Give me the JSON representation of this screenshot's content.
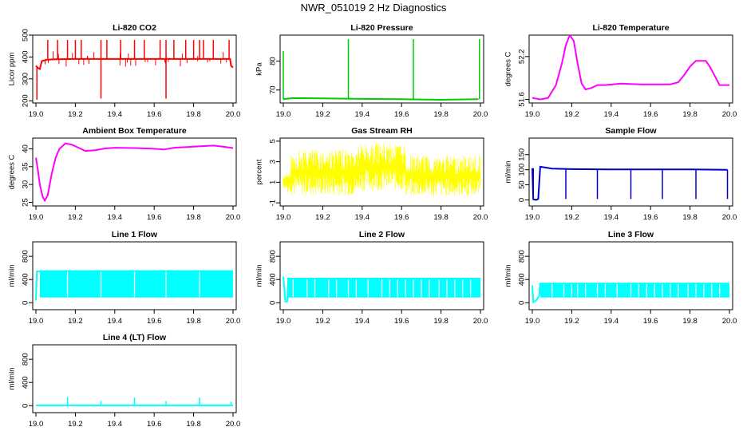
{
  "page_title": "NWR_051019  2 Hz Diagnostics",
  "chart_data": [
    {
      "id": "co2",
      "type": "line",
      "title": "Li-820 CO2",
      "ylabel": "Licor ppm",
      "color": "#ff0000",
      "xlim": [
        19.0,
        20.0
      ],
      "ylim": [
        190,
        500
      ],
      "xticks": [
        "19.0",
        "19.2",
        "19.4",
        "19.6",
        "19.8",
        "20.0"
      ],
      "yticks": [
        200,
        300,
        400,
        500
      ],
      "baseline": [
        [
          19.0,
          360
        ],
        [
          19.01,
          350
        ],
        [
          19.02,
          345
        ],
        [
          19.03,
          382
        ],
        [
          19.06,
          388
        ],
        [
          19.1,
          390
        ],
        [
          19.2,
          391
        ],
        [
          19.3,
          391
        ],
        [
          19.4,
          391
        ],
        [
          19.5,
          391
        ],
        [
          19.6,
          391
        ],
        [
          19.7,
          391
        ],
        [
          19.8,
          391
        ],
        [
          19.9,
          391
        ],
        [
          19.985,
          391
        ],
        [
          19.99,
          360
        ],
        [
          20.0,
          352
        ]
      ],
      "spikes": [
        [
          19.005,
          205
        ],
        [
          19.06,
          478
        ],
        [
          19.11,
          478
        ],
        [
          19.16,
          478
        ],
        [
          19.2,
          478
        ],
        [
          19.23,
          478
        ],
        [
          19.33,
          210
        ],
        [
          19.33,
          478
        ],
        [
          19.36,
          478
        ],
        [
          19.43,
          478
        ],
        [
          19.5,
          478
        ],
        [
          19.55,
          478
        ],
        [
          19.63,
          478
        ],
        [
          19.66,
          210
        ],
        [
          19.66,
          478
        ],
        [
          19.7,
          478
        ],
        [
          19.76,
          478
        ],
        [
          19.8,
          478
        ],
        [
          19.83,
          478
        ],
        [
          19.85,
          478
        ],
        [
          19.9,
          478
        ],
        [
          19.98,
          478
        ]
      ]
    },
    {
      "id": "pressure",
      "type": "line",
      "title": "Li-820 Pressure",
      "ylabel": "kPa",
      "color": "#00cc00",
      "xlim": [
        19.0,
        20.0
      ],
      "ylim": [
        65.5,
        89
      ],
      "xticks": [
        "19.0",
        "19.2",
        "19.4",
        "19.6",
        "19.8",
        "20.0"
      ],
      "yticks": [
        70,
        80
      ],
      "baseline": [
        [
          19.0,
          66.8
        ],
        [
          19.02,
          67.0
        ],
        [
          19.05,
          67.2
        ],
        [
          19.2,
          67.1
        ],
        [
          19.4,
          66.9
        ],
        [
          19.6,
          66.8
        ],
        [
          19.8,
          66.6
        ],
        [
          19.99,
          66.8
        ]
      ],
      "spikes": [
        [
          19.0,
          83.5
        ],
        [
          19.33,
          87.6
        ],
        [
          19.66,
          87.6
        ],
        [
          19.995,
          87.6
        ]
      ]
    },
    {
      "id": "temperature",
      "type": "line",
      "title": "Li-820 Temperature",
      "ylabel": "degrees C",
      "color": "#ff00ff",
      "xlim": [
        19.0,
        20.0
      ],
      "ylim": [
        51.55,
        52.5
      ],
      "xticks": [
        "19.0",
        "19.2",
        "19.4",
        "19.6",
        "19.8",
        "20.0"
      ],
      "yticks": [
        51.6,
        52.2
      ],
      "baseline": [
        [
          19.0,
          51.62
        ],
        [
          19.04,
          51.6
        ],
        [
          19.08,
          51.62
        ],
        [
          19.12,
          51.8
        ],
        [
          19.15,
          52.1
        ],
        [
          19.17,
          52.36
        ],
        [
          19.19,
          52.5
        ],
        [
          19.21,
          52.42
        ],
        [
          19.23,
          52.1
        ],
        [
          19.25,
          51.82
        ],
        [
          19.27,
          51.74
        ],
        [
          19.3,
          51.76
        ],
        [
          19.33,
          51.8
        ],
        [
          19.37,
          51.8
        ],
        [
          19.45,
          51.82
        ],
        [
          19.55,
          51.81
        ],
        [
          19.7,
          51.81
        ],
        [
          19.74,
          51.84
        ],
        [
          19.77,
          51.94
        ],
        [
          19.8,
          52.06
        ],
        [
          19.83,
          52.14
        ],
        [
          19.88,
          52.14
        ],
        [
          19.9,
          52.06
        ],
        [
          19.92,
          51.96
        ],
        [
          19.95,
          51.8
        ],
        [
          20.0,
          51.8
        ]
      ],
      "spikes": []
    },
    {
      "id": "ambient",
      "type": "line",
      "title": "Ambient Box Temperature",
      "ylabel": "degrees C",
      "color": "#ff00ff",
      "xlim": [
        19.0,
        20.0
      ],
      "ylim": [
        24,
        43
      ],
      "xticks": [
        "19.0",
        "19.2",
        "19.4",
        "19.6",
        "19.8",
        "20.0"
      ],
      "yticks": [
        25,
        30,
        35,
        40
      ],
      "baseline": [
        [
          19.0,
          37.5
        ],
        [
          19.01,
          34
        ],
        [
          19.02,
          30
        ],
        [
          19.035,
          26.5
        ],
        [
          19.045,
          25.5
        ],
        [
          19.06,
          27
        ],
        [
          19.08,
          33
        ],
        [
          19.1,
          37.5
        ],
        [
          19.12,
          40
        ],
        [
          19.15,
          41.5
        ],
        [
          19.18,
          41.2
        ],
        [
          19.22,
          40.2
        ],
        [
          19.25,
          39.4
        ],
        [
          19.3,
          39.6
        ],
        [
          19.35,
          40.1
        ],
        [
          19.4,
          40.3
        ],
        [
          19.5,
          40.2
        ],
        [
          19.6,
          40
        ],
        [
          19.65,
          39.8
        ],
        [
          19.7,
          40.3
        ],
        [
          19.8,
          40.6
        ],
        [
          19.9,
          40.9
        ],
        [
          19.95,
          40.6
        ],
        [
          20.0,
          40.2
        ]
      ],
      "spikes": []
    },
    {
      "id": "rh",
      "type": "noise",
      "title": "Gas Stream RH",
      "ylabel": "percent",
      "color": "#ffff00",
      "xlim": [
        19.0,
        20.0
      ],
      "ylim": [
        -1.3,
        5.3
      ],
      "xticks": [
        "19.0",
        "19.2",
        "19.4",
        "19.6",
        "19.8",
        "20.0"
      ],
      "yticks": [
        -1,
        1,
        3,
        5
      ],
      "segments": [
        [
          19.0,
          19.02,
          0.4,
          1.6
        ],
        [
          19.02,
          19.04,
          0.0,
          2.4
        ],
        [
          19.04,
          19.38,
          -0.3,
          4.2
        ],
        [
          19.38,
          19.62,
          0.2,
          4.8
        ],
        [
          19.62,
          20.0,
          -0.4,
          3.6
        ]
      ]
    },
    {
      "id": "sample_flow",
      "type": "line",
      "title": "Sample Flow",
      "ylabel": "ml/min",
      "color": "#0000cc",
      "xlim": [
        19.0,
        20.0
      ],
      "ylim": [
        -20,
        205
      ],
      "xticks": [
        "19.0",
        "19.2",
        "19.4",
        "19.6",
        "19.8",
        "20.0"
      ],
      "yticks": [
        0,
        50,
        100,
        150
      ],
      "baseline": [
        [
          19.0,
          105
        ],
        [
          19.005,
          2
        ],
        [
          19.02,
          0
        ],
        [
          19.03,
          3
        ],
        [
          19.04,
          110
        ],
        [
          19.06,
          108
        ],
        [
          19.1,
          104
        ],
        [
          19.2,
          102
        ],
        [
          19.4,
          101
        ],
        [
          19.6,
          101
        ],
        [
          19.8,
          101
        ],
        [
          19.99,
          100
        ]
      ],
      "spikes": [
        [
          19.005,
          105
        ],
        [
          19.17,
          3
        ],
        [
          19.33,
          3
        ],
        [
          19.5,
          3
        ],
        [
          19.66,
          3
        ],
        [
          19.83,
          3
        ],
        [
          19.99,
          3
        ]
      ]
    },
    {
      "id": "line1",
      "type": "band",
      "title": "Line 1 Flow",
      "ylabel": "ml/min",
      "color": "#00ffff",
      "xlim": [
        19.0,
        20.0
      ],
      "ylim": [
        -120,
        1050
      ],
      "xticks": [
        "19.0",
        "19.2",
        "19.4",
        "19.6",
        "19.8",
        "20.0"
      ],
      "yticks": [
        0,
        400,
        800
      ],
      "band": [
        19.02,
        20.0,
        90,
        560
      ],
      "gaps": [
        19.16,
        19.33,
        19.5,
        19.66,
        19.83
      ],
      "start": [
        [
          19.0,
          40
        ],
        [
          19.005,
          540
        ],
        [
          19.015,
          540
        ],
        [
          19.02,
          540
        ]
      ]
    },
    {
      "id": "line2",
      "type": "band",
      "title": "Line 2 Flow",
      "ylabel": "ml/min",
      "color": "#00ffff",
      "xlim": [
        19.0,
        20.0
      ],
      "ylim": [
        -120,
        1050
      ],
      "xticks": [
        "19.0",
        "19.2",
        "19.4",
        "19.6",
        "19.8",
        "20.0"
      ],
      "yticks": [
        0,
        400,
        800
      ],
      "band": [
        19.02,
        20.0,
        90,
        430
      ],
      "gaps": [
        19.05,
        19.12,
        19.16,
        19.23,
        19.27,
        19.33,
        19.37,
        19.43,
        19.5,
        19.54,
        19.58,
        19.62,
        19.66,
        19.7,
        19.74,
        19.79,
        19.83,
        19.87,
        19.91,
        19.95
      ],
      "start": [
        [
          19.0,
          450
        ],
        [
          19.01,
          20
        ],
        [
          19.02,
          20
        ],
        [
          19.025,
          430
        ]
      ]
    },
    {
      "id": "line3",
      "type": "band",
      "title": "Line 3 Flow",
      "ylabel": "ml/min",
      "color": "#00ffff",
      "xlim": [
        19.0,
        20.0
      ],
      "ylim": [
        -120,
        1050
      ],
      "xticks": [
        "19.0",
        "19.2",
        "19.4",
        "19.6",
        "19.8",
        "20.0"
      ],
      "yticks": [
        0,
        400,
        800
      ],
      "band": [
        19.04,
        20.0,
        90,
        345
      ],
      "gaps": [
        19.1,
        19.16,
        19.2,
        19.23,
        19.27,
        19.33,
        19.37,
        19.43,
        19.5,
        19.54,
        19.58,
        19.62,
        19.66,
        19.7,
        19.74,
        19.79,
        19.83,
        19.87,
        19.91,
        19.95
      ],
      "start": [
        [
          19.0,
          300
        ],
        [
          19.005,
          10
        ],
        [
          19.02,
          40
        ],
        [
          19.035,
          120
        ],
        [
          19.04,
          340
        ]
      ]
    },
    {
      "id": "line4",
      "type": "line",
      "title": "Line 4 (LT) Flow",
      "ylabel": "ml/min",
      "color": "#00ffff",
      "xlim": [
        19.0,
        20.0
      ],
      "ylim": [
        -120,
        1050
      ],
      "xticks": [
        "19.0",
        "19.2",
        "19.4",
        "19.6",
        "19.8",
        "20.0"
      ],
      "yticks": [
        0,
        400,
        800
      ],
      "baseline": [
        [
          19.0,
          5
        ],
        [
          20.0,
          5
        ]
      ],
      "spikes": [
        [
          19.16,
          150
        ],
        [
          19.33,
          80
        ],
        [
          19.5,
          140
        ],
        [
          19.66,
          80
        ],
        [
          19.83,
          140
        ],
        [
          19.99,
          70
        ]
      ]
    }
  ]
}
